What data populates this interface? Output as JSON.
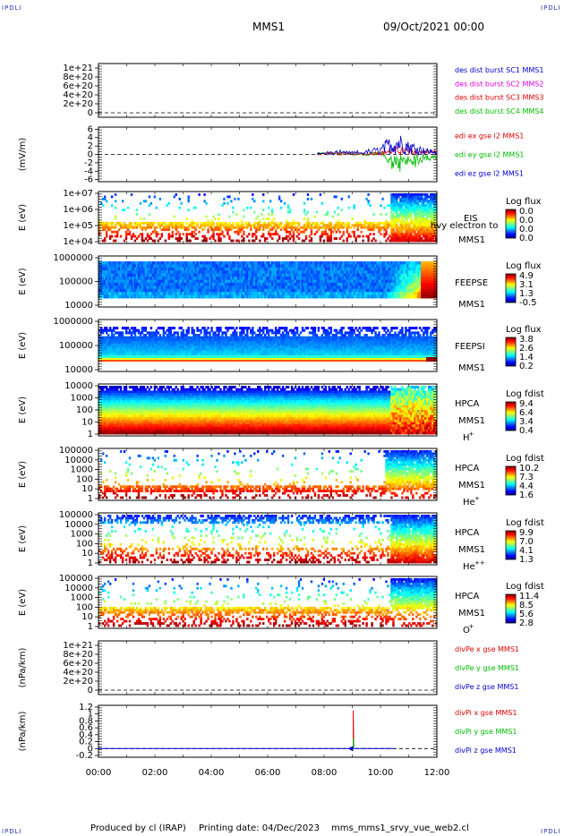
{
  "header": {
    "corner_label": "IPDLI",
    "spacecraft": "MMS1",
    "date_time": "09/Oct/2021 00:00"
  },
  "footer": {
    "produced_by": "Produced by cl (IRAP)",
    "printing_date": "Printing date: 04/Dec/2023",
    "filename": "mms_mms1_srvy_vue_web2.cl"
  },
  "colors": {
    "blue": "#0000cc",
    "green": "#00bb00",
    "red": "#dd0000",
    "magenta": "#dd00dd",
    "frame": "#000000"
  },
  "chart_data": [
    {
      "id": "des-dist",
      "type": "line",
      "ylabel": "",
      "ylim": [
        -1e+20,
        1.1e+21
      ],
      "yticks": [
        "0",
        "2e+20",
        "4e+20",
        "6e+20",
        "8e+20",
        "1e+21"
      ],
      "xlim": [
        "00:00",
        "12:00"
      ],
      "dashed_zero": true,
      "legend": [
        {
          "label": "des dist burst SC1 MMS1",
          "color": "blue"
        },
        {
          "label": "des dist burst SC2 MMS2",
          "color": "magenta"
        },
        {
          "label": "des dist burst SC3 MMS3",
          "color": "red"
        },
        {
          "label": "des dist burst SC4 MMS4",
          "color": "green"
        }
      ],
      "series": []
    },
    {
      "id": "edi-e",
      "type": "line",
      "ylabel": "(mV/m)",
      "ylim": [
        -6.5,
        6.5
      ],
      "yticks": [
        "-6",
        "-4",
        "-2",
        "0",
        "2",
        "4",
        "6"
      ],
      "xlim": [
        "00:00",
        "12:00"
      ],
      "dashed_zero": true,
      "legend": [
        {
          "label": "edi ex gse l2 MMS1",
          "color": "red"
        },
        {
          "label": "edi ey gse l2 MMS1",
          "color": "green"
        },
        {
          "label": "edi ez gse l2 MMS1",
          "color": "blue"
        }
      ],
      "active_interval": [
        "07:40",
        "12:00"
      ],
      "series": [
        {
          "color": "green",
          "x": [
            "07:45",
            "08:30",
            "09:00",
            "09:30",
            "10:00",
            "10:20",
            "10:40",
            "11:00",
            "11:20",
            "11:40",
            "12:00"
          ],
          "y": [
            0.3,
            0.6,
            0.5,
            -0.5,
            1.2,
            -3.5,
            -4.5,
            -2.5,
            -3.0,
            -1.5,
            -2.0
          ]
        },
        {
          "color": "red",
          "x": [
            "07:45",
            "08:30",
            "09:00",
            "09:30",
            "10:00",
            "10:20",
            "10:40",
            "11:00",
            "11:20",
            "11:40",
            "12:00"
          ],
          "y": [
            0.2,
            0.4,
            0.3,
            0.5,
            0.8,
            1.5,
            2.0,
            1.5,
            1.0,
            1.2,
            0.8
          ]
        },
        {
          "color": "blue",
          "x": [
            "07:45",
            "08:30",
            "09:00",
            "09:30",
            "10:00",
            "10:20",
            "10:40",
            "11:00",
            "11:20",
            "11:40",
            "12:00"
          ],
          "y": [
            0.4,
            0.8,
            0.6,
            1.0,
            2.0,
            4.5,
            5.5,
            3.5,
            2.5,
            1.5,
            1.0
          ]
        }
      ]
    },
    {
      "id": "eis",
      "type": "heatmap",
      "ylabel": "E (eV)",
      "yticks": [
        "1e+04",
        "1e+05",
        "1e+06",
        "1e+07"
      ],
      "xlim": [
        "00:00",
        "12:00"
      ],
      "instrument": [
        "EIS",
        "MMS1"
      ],
      "overlay_text": "hvy electron to",
      "colorbar": {
        "title": "Log flux",
        "ticks": [
          "0.0",
          "0.0",
          "0.0",
          "0.0"
        ]
      },
      "fill": "none"
    },
    {
      "id": "feeps-e",
      "type": "heatmap",
      "ylabel": "E (eV)",
      "yticks": [
        "10000",
        "100000",
        "1000000"
      ],
      "xlim": [
        "00:00",
        "12:00"
      ],
      "instrument": [
        "FEEPSE",
        "MMS1"
      ],
      "colorbar": {
        "title": "Log flux",
        "ticks": [
          "4.9",
          "3.1",
          "1.3",
          "-0.5"
        ]
      },
      "fill": "feepse"
    },
    {
      "id": "feeps-i",
      "type": "heatmap",
      "ylabel": "E (eV)",
      "yticks": [
        "10000",
        "100000",
        "1000000"
      ],
      "xlim": [
        "00:00",
        "12:00"
      ],
      "instrument": [
        "FEEPSI",
        "MMS1"
      ],
      "colorbar": {
        "title": "Log flux",
        "ticks": [
          "3.8",
          "2.6",
          "1.4",
          "0.2"
        ]
      },
      "fill": "feepsi"
    },
    {
      "id": "hpca-h",
      "type": "heatmap",
      "ylabel": "E (eV)",
      "yticks": [
        "1",
        "10",
        "100",
        "1000",
        "10000"
      ],
      "xlim": [
        "00:00",
        "12:00"
      ],
      "instrument": [
        "HPCA",
        "MMS1"
      ],
      "species": "H",
      "charge": "+",
      "colorbar": {
        "title": "Log fdist",
        "ticks": [
          "9.4",
          "6.4",
          "3.4",
          "0.4"
        ]
      },
      "fill": "hplus"
    },
    {
      "id": "hpca-he1",
      "type": "heatmap",
      "ylabel": "E (eV)",
      "yticks": [
        "1",
        "10",
        "100",
        "1000",
        "10000",
        "100000"
      ],
      "xlim": [
        "00:00",
        "12:00"
      ],
      "instrument": [
        "HPCA",
        "MMS1"
      ],
      "species": "He",
      "charge": "+",
      "colorbar": {
        "title": "Log fdist",
        "ticks": [
          "10.2",
          "7.3",
          "4.4",
          "1.6"
        ]
      },
      "fill": "heplus"
    },
    {
      "id": "hpca-he2",
      "type": "heatmap",
      "ylabel": "E (eV)",
      "yticks": [
        "1",
        "10",
        "100",
        "1000",
        "10000",
        "100000"
      ],
      "xlim": [
        "00:00",
        "12:00"
      ],
      "instrument": [
        "HPCA",
        "MMS1"
      ],
      "species": "He",
      "charge": "++",
      "colorbar": {
        "title": "Log fdist",
        "ticks": [
          "9.9",
          "7.0",
          "4.1",
          "1.3"
        ]
      },
      "fill": "heplusplus"
    },
    {
      "id": "hpca-o",
      "type": "heatmap",
      "ylabel": "E (eV)",
      "yticks": [
        "1",
        "10",
        "100",
        "1000",
        "10000",
        "100000"
      ],
      "xlim": [
        "00:00",
        "12:00"
      ],
      "instrument": [
        "HPCA",
        "MMS1"
      ],
      "species": "O",
      "charge": "+",
      "colorbar": {
        "title": "Log fdist",
        "ticks": [
          "11.4",
          "8.5",
          "5.6",
          "2.8"
        ]
      },
      "fill": "oplus"
    },
    {
      "id": "divpe",
      "type": "line",
      "ylabel": "(nPa/km)",
      "ylim": [
        -1e+20,
        1.1e+21
      ],
      "yticks": [
        "0",
        "2e+20",
        "4e+20",
        "6e+20",
        "8e+20",
        "1e+21"
      ],
      "xlim": [
        "00:00",
        "12:00"
      ],
      "dashed_zero": true,
      "legend": [
        {
          "label": "divPe x gse MMS1",
          "color": "red"
        },
        {
          "label": "divPe y gse MMS1",
          "color": "green"
        },
        {
          "label": "divPe z gse MMS1",
          "color": "blue"
        }
      ],
      "series": []
    },
    {
      "id": "divpi",
      "type": "line",
      "ylabel": "(nPa/km)",
      "ylim": [
        -0.25,
        1.25
      ],
      "yticks": [
        "-0.2",
        "0",
        "0.2",
        "0.4",
        "0.6",
        "0.8",
        "1",
        "1.2"
      ],
      "xlim": [
        "00:00",
        "12:00"
      ],
      "xticks": [
        "00:00",
        "02:00",
        "04:00",
        "06:00",
        "08:00",
        "10:00",
        "12:00"
      ],
      "dashed_zero": true,
      "legend": [
        {
          "label": "divPi x gse MMS1",
          "color": "red"
        },
        {
          "label": "divPi y gse MMS1",
          "color": "green"
        },
        {
          "label": "divPi z gse MMS1",
          "color": "blue"
        }
      ],
      "series": [
        {
          "color": "blue",
          "x": [
            "00:00",
            "01:45",
            "04:00",
            "09:00",
            "10:30"
          ],
          "y": [
            0,
            0,
            0,
            0,
            0
          ]
        },
        {
          "color": "red",
          "x": [
            "09:02",
            "09:02",
            "09:03"
          ],
          "y": [
            0,
            1.1,
            0
          ]
        },
        {
          "color": "green",
          "x": [
            "09:02",
            "09:02",
            "09:03"
          ],
          "y": [
            0,
            0.3,
            0
          ]
        }
      ],
      "marker": {
        "x": "09:00",
        "y": 0,
        "color": "blue"
      }
    }
  ]
}
